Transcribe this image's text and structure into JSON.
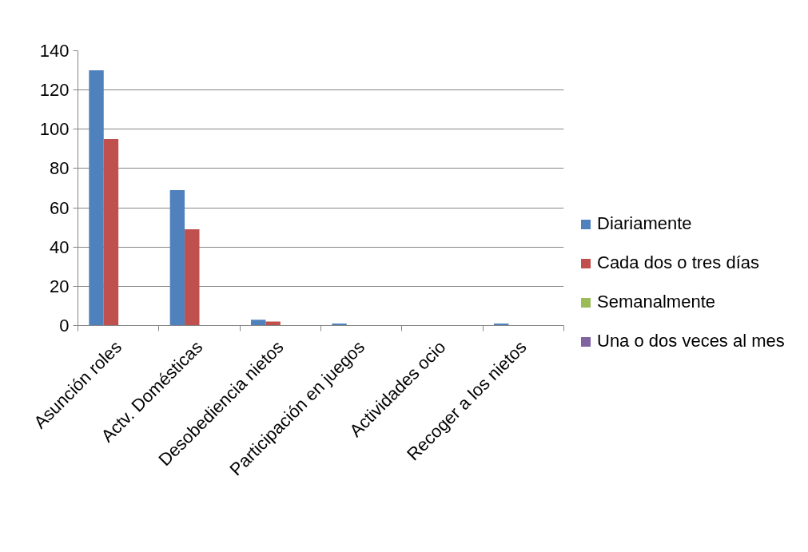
{
  "chart_data": {
    "type": "bar",
    "categories": [
      "Asunción roles",
      "Actv. Domésticas",
      "Desobediencia nietos",
      "Participación en juegos",
      "Actividades ocio",
      "Recoger a los nietos"
    ],
    "series": [
      {
        "name": "Diariamente",
        "color": "#4f81bd",
        "values": [
          130,
          69,
          3,
          1,
          0,
          1
        ]
      },
      {
        "name": "Cada dos o tres días",
        "color": "#c0504d",
        "values": [
          95,
          49,
          2,
          0,
          0,
          0
        ]
      },
      {
        "name": "Semanalmente",
        "color": "#9bbb59",
        "values": [
          0,
          0,
          0,
          0,
          0,
          0
        ]
      },
      {
        "name": "Una o dos veces al mes",
        "color": "#8064a2",
        "values": [
          0,
          0,
          0,
          0,
          0,
          0
        ]
      }
    ],
    "ylim": [
      0,
      140
    ],
    "yticks": [
      0,
      20,
      40,
      60,
      80,
      100,
      120,
      140
    ],
    "grid": "y",
    "legend": "right"
  }
}
